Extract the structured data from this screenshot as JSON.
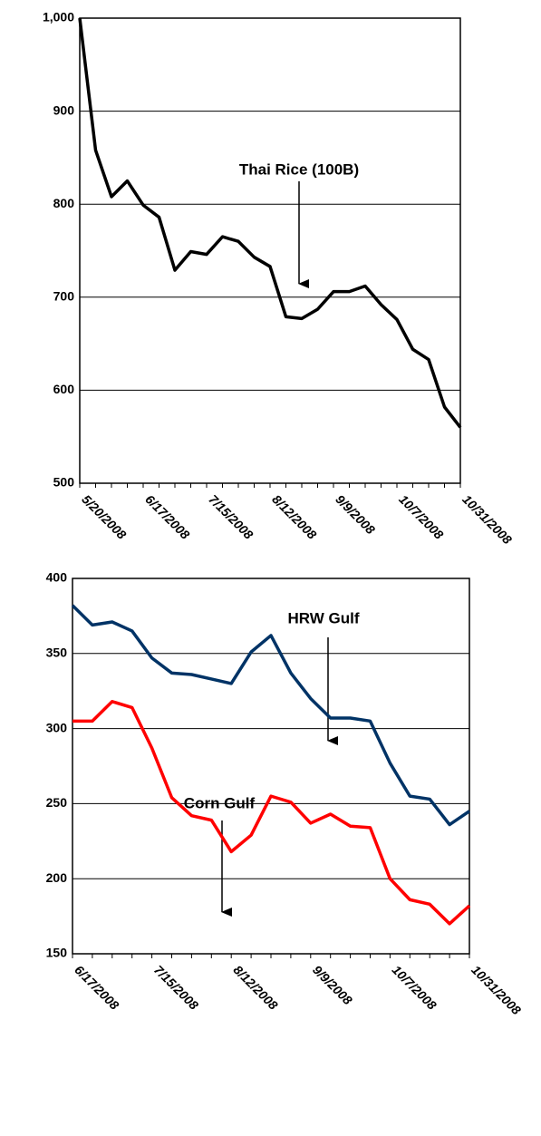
{
  "chart_data": [
    {
      "type": "line",
      "categories": [
        "5/20/2008",
        null,
        null,
        null,
        "6/17/2008",
        null,
        null,
        null,
        "7/15/2008",
        null,
        null,
        null,
        "8/12/2008",
        null,
        null,
        null,
        "9/9/2008",
        null,
        null,
        null,
        "10/7/2008",
        null,
        null,
        null,
        "10/31/2008"
      ],
      "series": [
        {
          "name": "Thai Rice (100B)",
          "color": "#000000",
          "values": [
            1000,
            858,
            808,
            825,
            799,
            786,
            729,
            749,
            746,
            765,
            760,
            743,
            733,
            679,
            677,
            687,
            706,
            706,
            712,
            692,
            676,
            644,
            633,
            582,
            560
          ]
        }
      ],
      "annotations": [
        "Thai Rice (100B)"
      ],
      "ylim": [
        500,
        1000
      ],
      "yticks": [
        500,
        600,
        700,
        800,
        900,
        {
          "value": 1000,
          "label": "1,000"
        }
      ],
      "grid": true
    },
    {
      "type": "line",
      "categories": [
        "6/17/2008",
        null,
        null,
        null,
        "7/15/2008",
        null,
        null,
        null,
        "8/12/2008",
        null,
        null,
        null,
        "9/9/2008",
        null,
        null,
        null,
        "10/7/2008",
        null,
        null,
        null,
        "10/31/2008"
      ],
      "series": [
        {
          "name": "HRW Gulf",
          "color": "#003366",
          "values": [
            382,
            369,
            371,
            365,
            347,
            337,
            336,
            333,
            330,
            351,
            362,
            337,
            320,
            307,
            307,
            305,
            277,
            255,
            253,
            236,
            245
          ]
        },
        {
          "name": "Corn Gulf",
          "color": "#ff0000",
          "values": [
            305,
            305,
            318,
            314,
            287,
            254,
            242,
            239,
            218,
            229,
            255,
            251,
            237,
            243,
            235,
            234,
            200,
            186,
            183,
            170,
            182
          ]
        }
      ],
      "annotations": [
        "HRW Gulf",
        "Corn Gulf"
      ],
      "ylim": [
        150,
        400
      ],
      "yticks": [
        150,
        200,
        250,
        300,
        350,
        400
      ],
      "grid": true
    }
  ]
}
